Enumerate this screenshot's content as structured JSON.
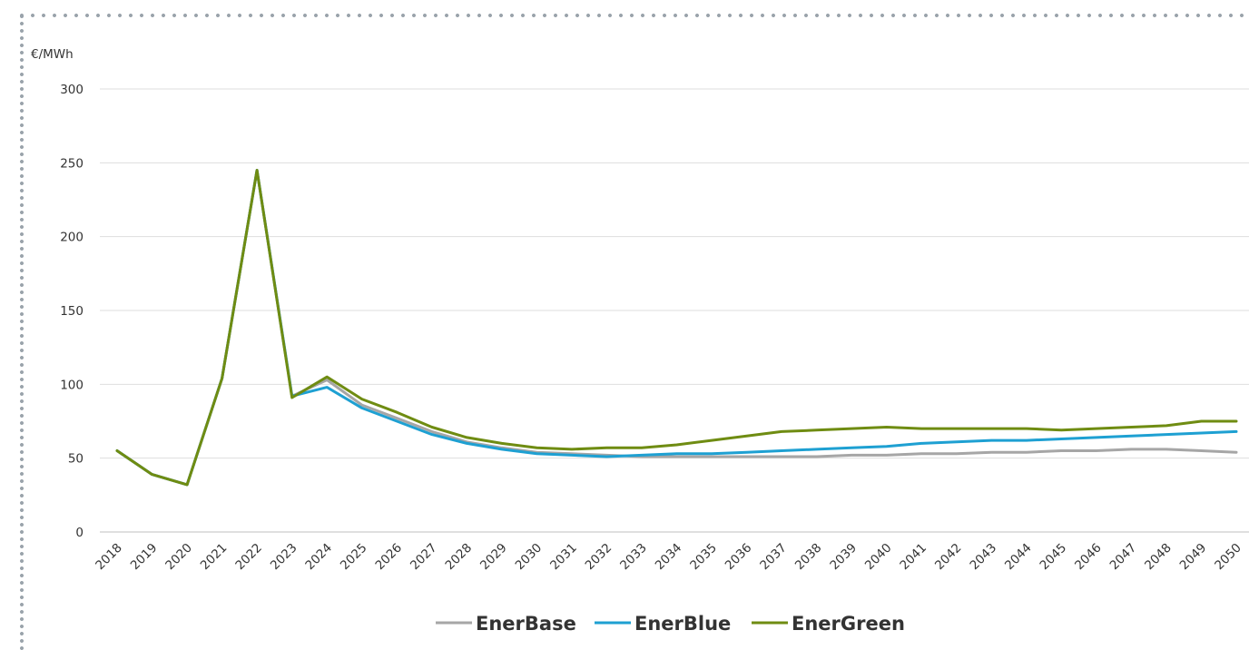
{
  "chart_data": {
    "type": "line",
    "ylabel": "€/MWh",
    "ylim": [
      0,
      300
    ],
    "yticks": [
      0,
      50,
      100,
      150,
      200,
      250,
      300
    ],
    "grid": true,
    "legend_position": "bottom-center",
    "x": [
      "2018",
      "2019",
      "2020",
      "2021",
      "2022",
      "2023",
      "2024",
      "2025",
      "2026",
      "2027",
      "2028",
      "2029",
      "2030",
      "2031",
      "2032",
      "2033",
      "2034",
      "2035",
      "2036",
      "2037",
      "2038",
      "2039",
      "2040",
      "2041",
      "2042",
      "2043",
      "2044",
      "2045",
      "2046",
      "2047",
      "2048",
      "2049",
      "2050"
    ],
    "series": [
      {
        "name": "EnerBase",
        "color": "#a6a6a6",
        "values": [
          55,
          39,
          32,
          104,
          245,
          92,
          103,
          86,
          77,
          68,
          61,
          57,
          54,
          53,
          52,
          51,
          51,
          51,
          51,
          51,
          51,
          52,
          52,
          53,
          53,
          54,
          54,
          55,
          55,
          56,
          56,
          55,
          54
        ]
      },
      {
        "name": "EnerBlue",
        "color": "#1ea0d2",
        "values": [
          55,
          39,
          32,
          104,
          245,
          92,
          98,
          84,
          75,
          66,
          60,
          56,
          53,
          52,
          51,
          52,
          53,
          53,
          54,
          55,
          56,
          57,
          58,
          60,
          61,
          62,
          62,
          63,
          64,
          65,
          66,
          67,
          68
        ]
      },
      {
        "name": "EnerGreen",
        "color": "#6f8c12",
        "values": [
          55,
          39,
          32,
          104,
          245,
          91,
          105,
          90,
          81,
          71,
          64,
          60,
          57,
          56,
          57,
          57,
          59,
          62,
          65,
          68,
          69,
          70,
          71,
          70,
          70,
          70,
          70,
          69,
          70,
          71,
          72,
          75,
          75
        ]
      }
    ]
  }
}
